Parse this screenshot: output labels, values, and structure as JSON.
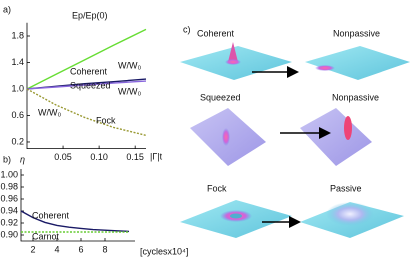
{
  "chart_data": [
    {
      "type": "line",
      "label": "a)",
      "xlabel": "|Γ|t",
      "x": [
        0,
        0.04,
        0.08,
        0.12,
        0.165
      ],
      "series": [
        {
          "name": "Ep/Ep(0)",
          "color": "#66dd33",
          "dash": false,
          "values": [
            1.0,
            1.22,
            1.44,
            1.66,
            1.9
          ]
        },
        {
          "name": "Coherent",
          "color": "#1a1a66",
          "dash": false,
          "values": [
            1.0,
            1.04,
            1.08,
            1.11,
            1.15
          ]
        },
        {
          "name": "Squeezed",
          "color": "#8866dd",
          "dash": false,
          "values": [
            1.0,
            1.03,
            1.06,
            1.09,
            1.12
          ]
        },
        {
          "name": "Fock",
          "color": "#999933",
          "dash": true,
          "values": [
            1.0,
            0.76,
            0.57,
            0.42,
            0.3
          ]
        }
      ],
      "annotations": [
        "W/W₀",
        "W/W₀",
        "W/W₀"
      ],
      "xlim": [
        0,
        0.165
      ],
      "xticks": [
        0.05,
        {
          "value": 0.1,
          "label": "0.10"
        },
        0.15
      ],
      "ylim": [
        0.1,
        2.0
      ],
      "yticks": [
        0.2,
        0.6,
        {
          "value": 1.0,
          "label": "1.0"
        },
        1.4,
        1.8
      ]
    },
    {
      "type": "line",
      "label": "b)",
      "ylabel": "η",
      "xlabel": "[cyclesx10⁴]",
      "x": [
        1,
        2,
        3,
        4,
        5,
        6,
        7,
        8,
        9,
        10
      ],
      "series": [
        {
          "name": "Coherent",
          "color": "#1a1a66",
          "dash": false,
          "values": [
            0.94,
            0.929,
            0.921,
            0.916,
            0.913,
            0.911,
            0.909,
            0.908,
            0.907,
            0.906
          ]
        },
        {
          "name": "Carnot",
          "color": "#66cc33",
          "dash": true,
          "values": [
            0.905,
            0.905,
            0.905,
            0.905,
            0.905,
            0.905,
            0.905,
            0.905,
            0.905,
            0.905
          ]
        }
      ],
      "xlim": [
        1,
        10.5
      ],
      "xticks": [
        2,
        4,
        6,
        8
      ],
      "ylim": [
        0.89,
        1.01
      ],
      "yticks": [
        {
          "value": 0.9,
          "label": "0.90"
        },
        0.92,
        0.94,
        0.96,
        0.98,
        {
          "value": 1.0,
          "label": "1.00"
        }
      ]
    }
  ],
  "panel_c": {
    "label": "c)",
    "rows": [
      {
        "left": "Coherent",
        "right": "Nonpassive"
      },
      {
        "left": "Squeezed",
        "right": "Nonpassive"
      },
      {
        "left": "Fock",
        "right": "Passive"
      }
    ]
  }
}
